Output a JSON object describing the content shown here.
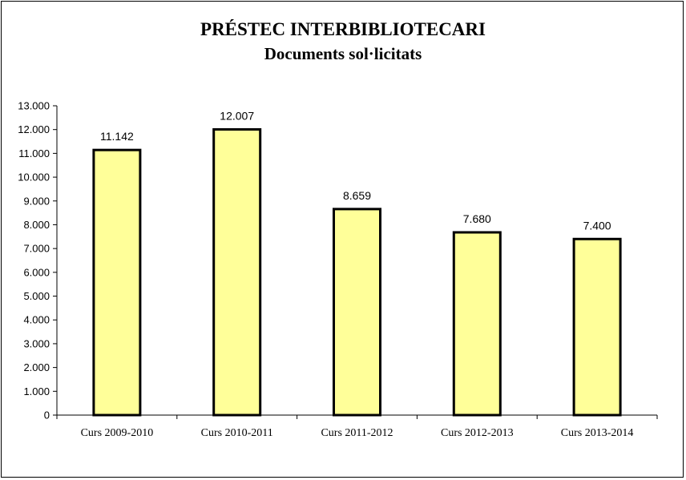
{
  "chart_data": {
    "type": "bar",
    "title": "PRÉSTEC INTERBIBLIOTECARI",
    "subtitle": "Documents sol·licitats",
    "categories": [
      "Curs 2009-2010",
      "Curs 2010-2011",
      "Curs 2011-2012",
      "Curs 2012-2013",
      "Curs 2013-2014"
    ],
    "values": [
      11142,
      12007,
      8659,
      7680,
      7400
    ],
    "data_labels": [
      "11.142",
      "12.007",
      "8.659",
      "7.680",
      "7.400"
    ],
    "ylim": [
      0,
      13000
    ],
    "yticks": [
      0,
      1000,
      2000,
      3000,
      4000,
      5000,
      6000,
      7000,
      8000,
      9000,
      10000,
      11000,
      12000,
      13000
    ],
    "ytick_labels": [
      "0",
      "1.000",
      "2.000",
      "3.000",
      "4.000",
      "5.000",
      "6.000",
      "7.000",
      "8.000",
      "9.000",
      "10.000",
      "11.000",
      "12.000",
      "13.000"
    ],
    "grid": false,
    "legend": "none",
    "colors": {
      "bar_fill": "#ffff99",
      "bar_stroke": "#000000",
      "axis": "#000000"
    }
  }
}
